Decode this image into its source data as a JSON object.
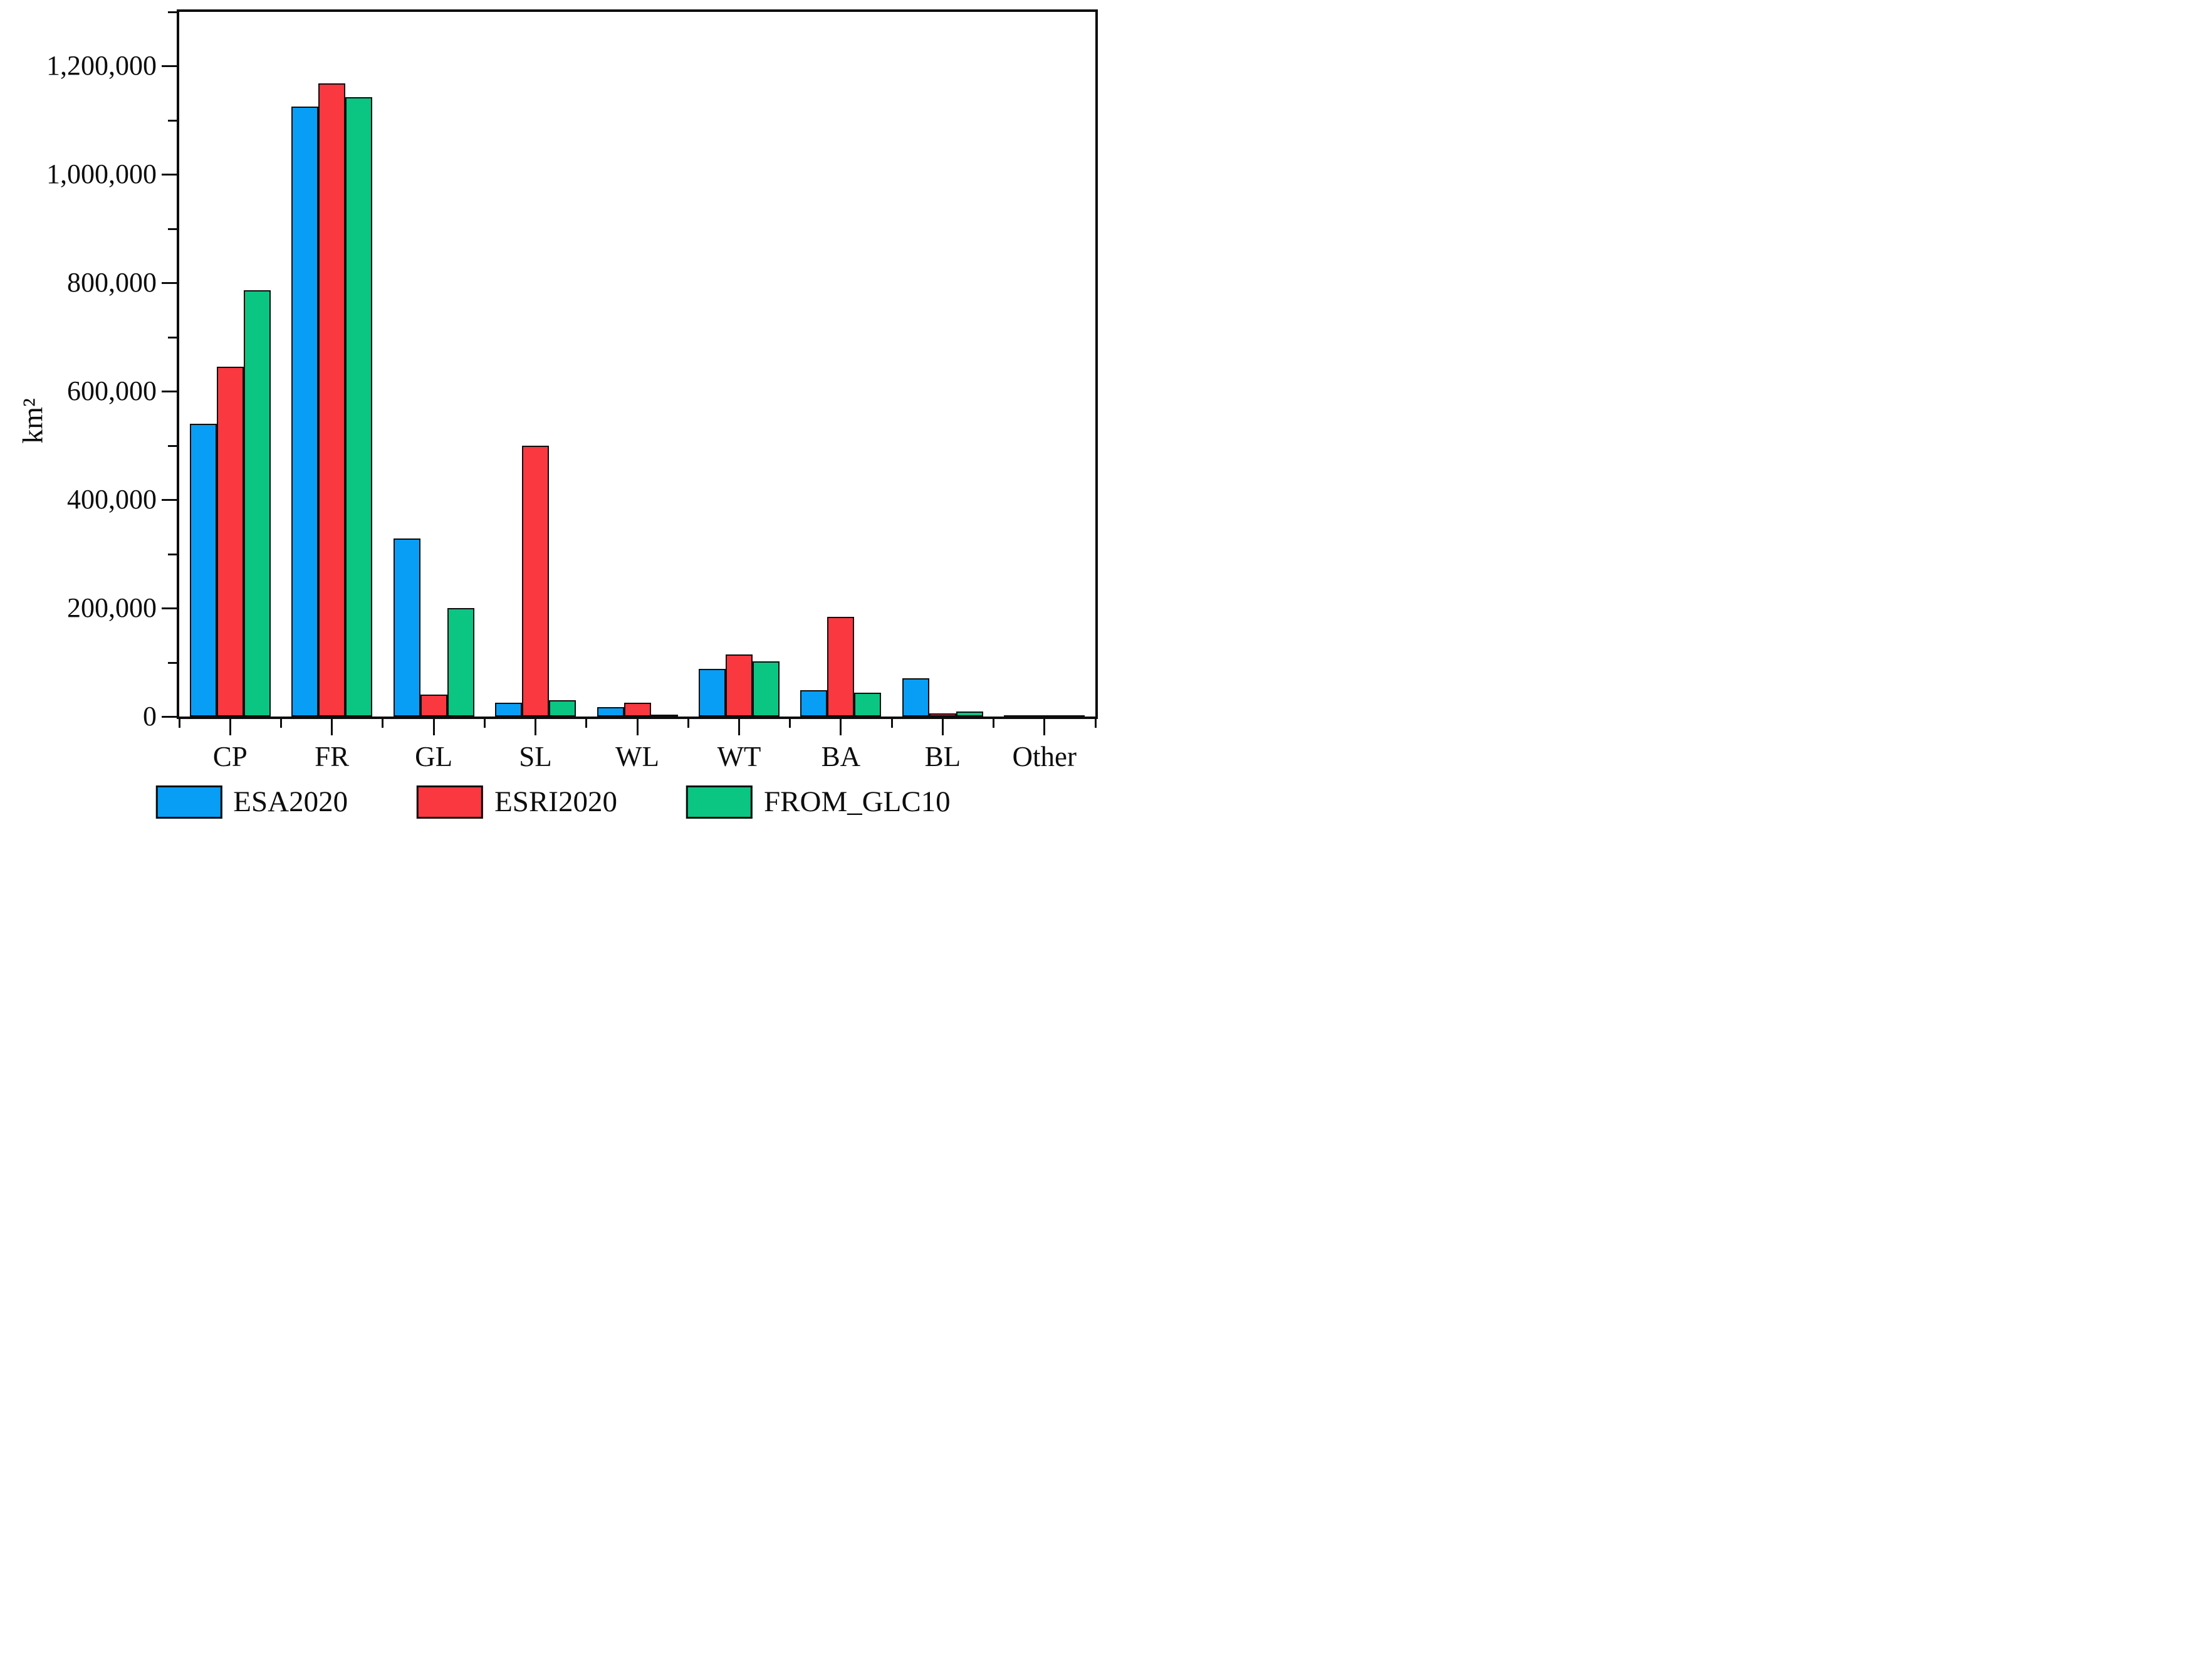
{
  "chart_data": {
    "type": "bar",
    "title": "",
    "xlabel": "",
    "ylabel": "km²",
    "categories": [
      "CP",
      "FR",
      "GL",
      "SL",
      "WL",
      "WT",
      "BA",
      "BL",
      "Other"
    ],
    "series": [
      {
        "name": "ESA2020",
        "color": "#089EF5",
        "values": [
          540000,
          1125000,
          328000,
          26000,
          17000,
          88000,
          48000,
          70000,
          2000
        ]
      },
      {
        "name": "ESRI2020",
        "color": "#F93840",
        "values": [
          645000,
          1168000,
          41000,
          500000,
          25000,
          114000,
          184000,
          6000,
          2000
        ]
      },
      {
        "name": "FROM_GLC10",
        "color": "#0BC583",
        "values": [
          787000,
          1143000,
          200000,
          30000,
          4000,
          102000,
          44000,
          9000,
          2000
        ]
      }
    ],
    "ylim": [
      0,
      1300000
    ],
    "y_major_ticks": [
      0,
      200000,
      400000,
      600000,
      800000,
      1000000,
      1200000
    ],
    "y_tick_labels": [
      "0",
      "200,000",
      "400,000",
      "600,000",
      "800,000",
      "1,000,000",
      "1,200,000"
    ],
    "y_minor_ticks": [
      100000,
      300000,
      500000,
      700000,
      900000,
      1100000,
      1300000
    ],
    "grid": false,
    "legend_position": "bottom",
    "bar_outline_color": "#0d0d0d",
    "axis_color": "#0d0d0d"
  }
}
